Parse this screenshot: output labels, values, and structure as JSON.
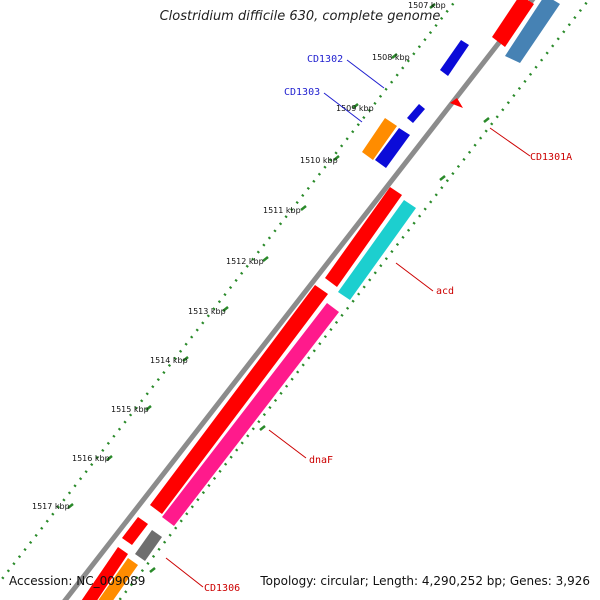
{
  "title": "Clostridium difficile 630, complete genome",
  "accession": "Accession: NC_009089",
  "summary": "Topology: circular; Length: 4,290,252 bp; Genes: 3,926",
  "colors": {
    "backbone": "#8c8c8c",
    "ticks": "#2a8a2a",
    "forward_label": "#1f1fcf",
    "reverse_label": "#cc0000"
  },
  "ticks": [
    "1507 kbp",
    "1508 kbp",
    "1509 kbp",
    "1510 kbp",
    "1511 kbp",
    "1512 kbp",
    "1513 kbp",
    "1514 kbp",
    "1515 kbp",
    "1516 kbp",
    "1517 kbp"
  ],
  "gene_labels": {
    "cd1302": "CD1302",
    "cd1303": "CD1303",
    "cd1301a": "CD1301A",
    "acd": "acd",
    "dnaf": "dnaF",
    "cd1306": "CD1306"
  }
}
